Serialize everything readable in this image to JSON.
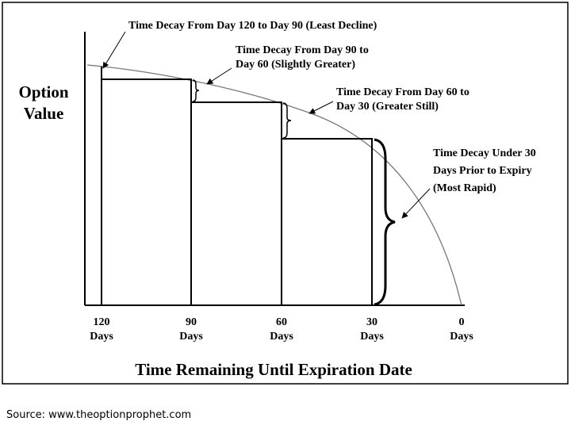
{
  "y_axis_label": [
    "Option",
    "Value"
  ],
  "x_axis_title": "Time Remaining Until Expiration Date",
  "x_ticks": [
    {
      "number": "120",
      "unit": "Days"
    },
    {
      "number": "90",
      "unit": "Days"
    },
    {
      "number": "60",
      "unit": "Days"
    },
    {
      "number": "30",
      "unit": "Days"
    },
    {
      "number": "0",
      "unit": "Days"
    }
  ],
  "annotations": [
    [
      "Time Decay From Day 120 to Day 90 (Least Decline)"
    ],
    [
      "Time Decay From Day 90 to",
      "Day 60 (Slightly Greater)"
    ],
    [
      "Time Decay From Day 60 to",
      "Day 30 (Greater Still)"
    ],
    [
      "Time Decay Under 30",
      "Days Prior to Expiry",
      "(Most Rapid)"
    ]
  ],
  "source": "Source:  www.theoptionprophet.com"
}
